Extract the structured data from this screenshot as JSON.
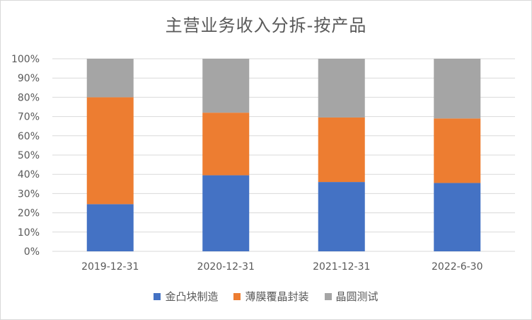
{
  "chart_data": {
    "type": "bar",
    "stacked": true,
    "title": "主营业务收入分拆-按产品",
    "xlabel": "",
    "ylabel": "",
    "categories": [
      "2019-12-31",
      "2020-12-31",
      "2021-12-31",
      "2022-6-30"
    ],
    "ylim": [
      0,
      100
    ],
    "yticks": [
      "0%",
      "10%",
      "20%",
      "30%",
      "40%",
      "50%",
      "60%",
      "70%",
      "80%",
      "90%",
      "100%"
    ],
    "grid": true,
    "legend_position": "bottom",
    "series": [
      {
        "name": "金凸块制造",
        "color": "#4472c4",
        "values": [
          24.5,
          39.5,
          36.0,
          35.5
        ]
      },
      {
        "name": "薄膜覆晶封装",
        "color": "#ed7d31",
        "values": [
          55.5,
          32.5,
          33.5,
          33.5
        ]
      },
      {
        "name": "晶圆测试",
        "color": "#a5a5a5",
        "values": [
          20.0,
          28.0,
          30.5,
          31.0
        ]
      }
    ]
  }
}
